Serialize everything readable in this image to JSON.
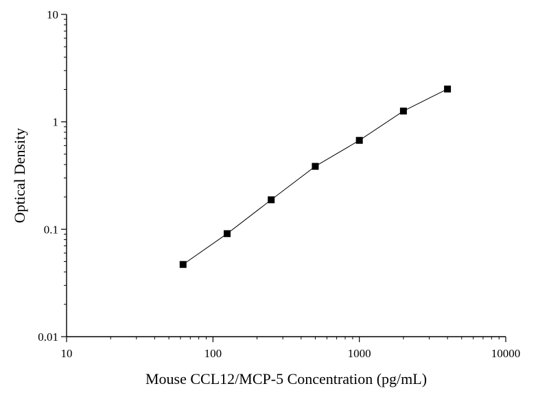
{
  "chart_data": {
    "type": "scatter",
    "title": "",
    "xlabel": "Mouse CCL12/MCP-5 Concentration (pg/mL)",
    "ylabel": "Optical Density",
    "x_scale": "log",
    "y_scale": "log",
    "xlim": [
      10,
      10000
    ],
    "ylim": [
      0.01,
      10
    ],
    "x_ticks": [
      "10",
      "100",
      "1000",
      "10000"
    ],
    "y_ticks": [
      "0.01",
      "0.1",
      "1",
      "10"
    ],
    "grid": false,
    "legend": "none",
    "series": [
      {
        "x": [
          62.5,
          125,
          250,
          500,
          1000,
          2000,
          4000
        ],
        "y": [
          0.047,
          0.091,
          0.188,
          0.385,
          0.672,
          1.26,
          2.02
        ],
        "marker": "square",
        "connected": true
      }
    ],
    "colors": {
      "marker": "#000000",
      "line": "#000000",
      "axis": "#000000",
      "background": "#ffffff"
    }
  }
}
